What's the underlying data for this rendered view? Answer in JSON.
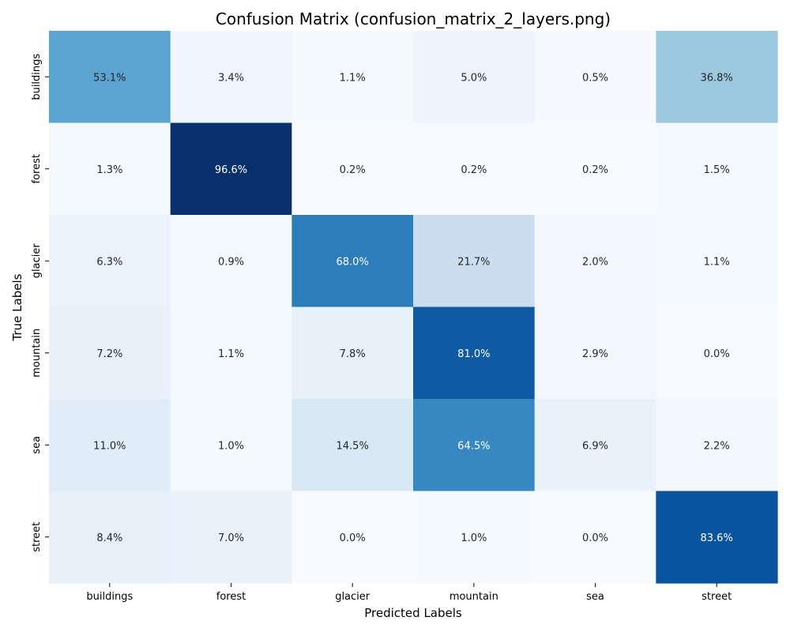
{
  "chart_data": {
    "type": "heatmap",
    "title": "Confusion Matrix (confusion_matrix_2_layers.png)",
    "xlabel": "Predicted Labels",
    "ylabel": "True Labels",
    "x_categories": [
      "buildings",
      "forest",
      "glacier",
      "mountain",
      "sea",
      "street"
    ],
    "y_categories": [
      "buildings",
      "forest",
      "glacier",
      "mountain",
      "sea",
      "street"
    ],
    "values": [
      [
        53.1,
        3.4,
        1.1,
        5.0,
        0.5,
        36.8
      ],
      [
        1.3,
        96.6,
        0.2,
        0.2,
        0.2,
        1.5
      ],
      [
        6.3,
        0.9,
        68.0,
        21.7,
        2.0,
        1.1
      ],
      [
        7.2,
        1.1,
        7.8,
        81.0,
        2.9,
        0.0
      ],
      [
        11.0,
        1.0,
        14.5,
        64.5,
        6.9,
        2.2
      ],
      [
        8.4,
        7.0,
        0.0,
        1.0,
        0.0,
        83.6
      ]
    ],
    "cell_labels": [
      [
        "53.1%",
        "3.4%",
        "1.1%",
        "5.0%",
        "0.5%",
        "36.8%"
      ],
      [
        "1.3%",
        "96.6%",
        "0.2%",
        "0.2%",
        "0.2%",
        "1.5%"
      ],
      [
        "6.3%",
        "0.9%",
        "68.0%",
        "21.7%",
        "2.0%",
        "1.1%"
      ],
      [
        "7.2%",
        "1.1%",
        "7.8%",
        "81.0%",
        "2.9%",
        "0.0%"
      ],
      [
        "11.0%",
        "1.0%",
        "14.5%",
        "64.5%",
        "6.9%",
        "2.2%"
      ],
      [
        "8.4%",
        "7.0%",
        "0.0%",
        "1.0%",
        "0.0%",
        "83.6%"
      ]
    ],
    "value_range": [
      0,
      96.6
    ],
    "colormap": "Blues",
    "colorbar": false,
    "grid": false
  }
}
